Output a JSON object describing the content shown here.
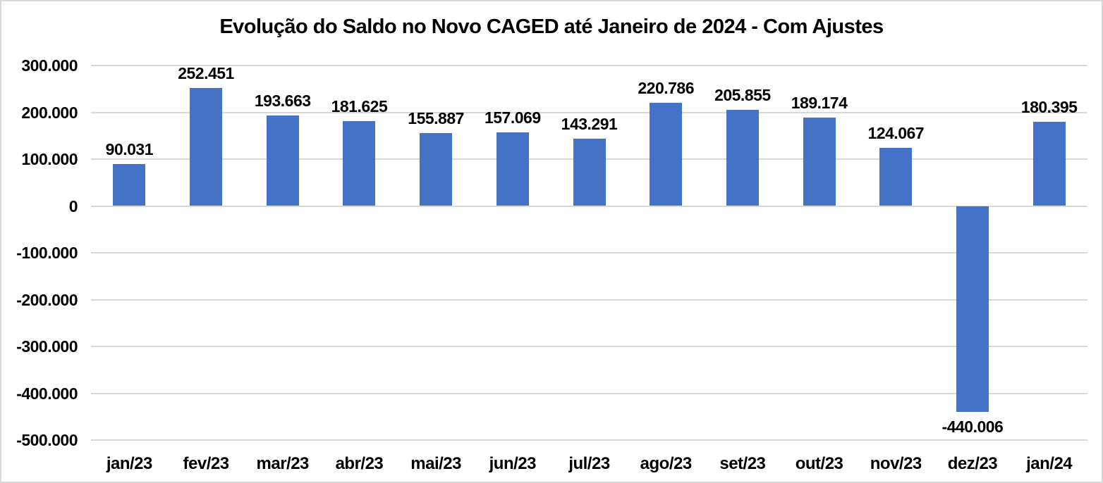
{
  "frame": {
    "background_color": "#ffffff",
    "border_color": "#d9d9d9"
  },
  "chart_data": {
    "type": "bar",
    "title": "Evolução do Saldo no Novo CAGED até Janeiro de 2024 - Com Ajustes",
    "categories": [
      "jan/23",
      "fev/23",
      "mar/23",
      "abr/23",
      "mai/23",
      "jun/23",
      "jul/23",
      "ago/23",
      "set/23",
      "out/23",
      "nov/23",
      "dez/23",
      "jan/24"
    ],
    "values": [
      90031,
      252451,
      193663,
      181625,
      155887,
      157069,
      143291,
      220786,
      205855,
      189174,
      124067,
      -440006,
      180395
    ],
    "data_labels": [
      "90.031",
      "252.451",
      "193.663",
      "181.625",
      "155.887",
      "157.069",
      "143.291",
      "220.786",
      "205.855",
      "189.174",
      "124.067",
      "-440.006",
      "180.395"
    ],
    "xlabel": "",
    "ylabel": "",
    "ylim": [
      -500000,
      300000
    ],
    "y_ticks": [
      300000,
      200000,
      100000,
      0,
      -100000,
      -200000,
      -300000,
      -400000,
      -500000
    ],
    "y_tick_labels": [
      "300.000",
      "200.000",
      "100.000",
      "0",
      "-100.000",
      "-200.000",
      "-300.000",
      "-400.000",
      "-500.000"
    ],
    "grid": true,
    "legend": false,
    "bar_color": "#4472c4",
    "gridline_color": "#d9d9d9",
    "text_color": "#000000"
  }
}
